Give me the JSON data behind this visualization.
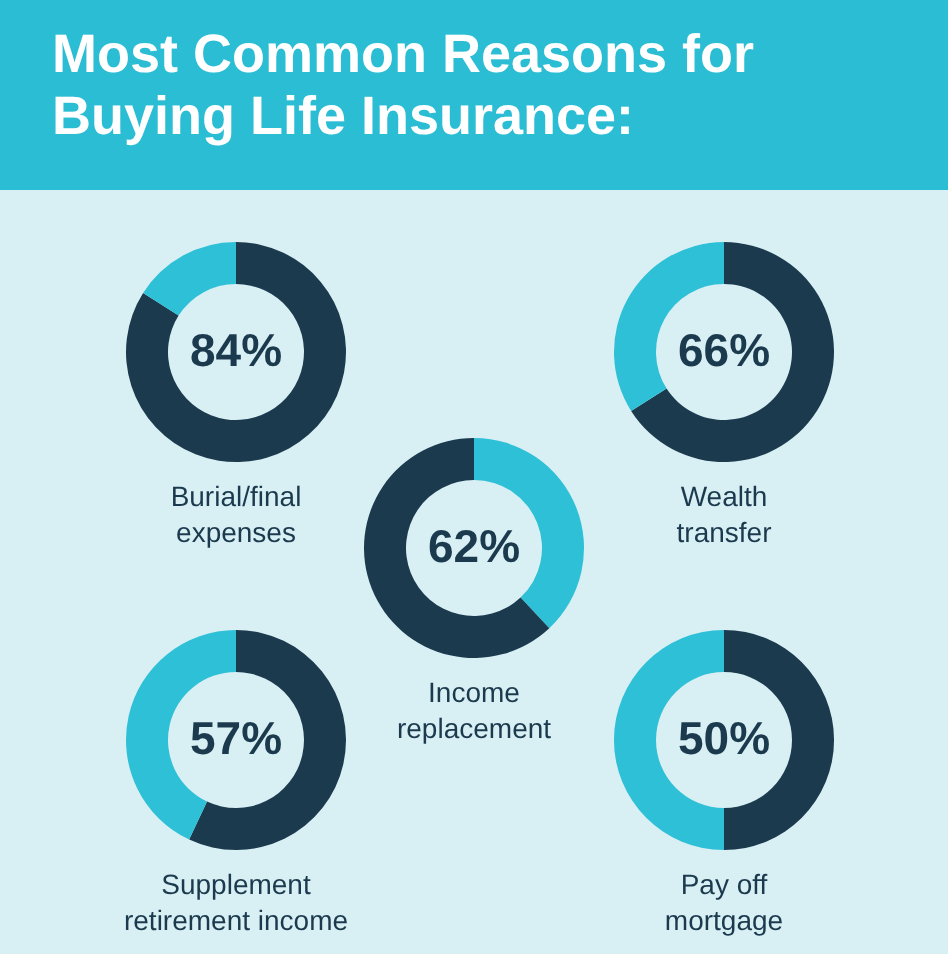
{
  "chart_data": [
    {
      "type": "donut",
      "title": "Most Common Reasons for Buying Life Insurance:",
      "categories": [
        "Burial/final expenses",
        null
      ],
      "values": [
        84,
        16
      ],
      "colors": [
        "#1c3a4e",
        "#2ec0d6"
      ],
      "value_labels": [
        "84%",
        null
      ]
    },
    {
      "type": "donut",
      "categories": [
        "Wealth transfer",
        null
      ],
      "values": [
        66,
        34
      ],
      "colors": [
        "#1c3a4e",
        "#2ec0d6"
      ],
      "value_labels": [
        "66%",
        null
      ]
    },
    {
      "type": "donut",
      "categories": [
        null,
        "Income replacement"
      ],
      "values": [
        38,
        62
      ],
      "colors": [
        "#2ec0d6",
        "#1c3a4e"
      ],
      "value_labels": [
        null,
        "62%"
      ]
    },
    {
      "type": "donut",
      "categories": [
        "Supplement retirement income",
        null
      ],
      "values": [
        57,
        43
      ],
      "colors": [
        "#1c3a4e",
        "#2ec0d6"
      ],
      "value_labels": [
        "57%",
        null
      ]
    },
    {
      "type": "donut",
      "categories": [
        "Pay off mortgage",
        null
      ],
      "values": [
        50,
        50
      ],
      "colors": [
        "#1c3a4e",
        "#2ec0d6"
      ],
      "value_labels": [
        "50%",
        null
      ]
    }
  ]
}
